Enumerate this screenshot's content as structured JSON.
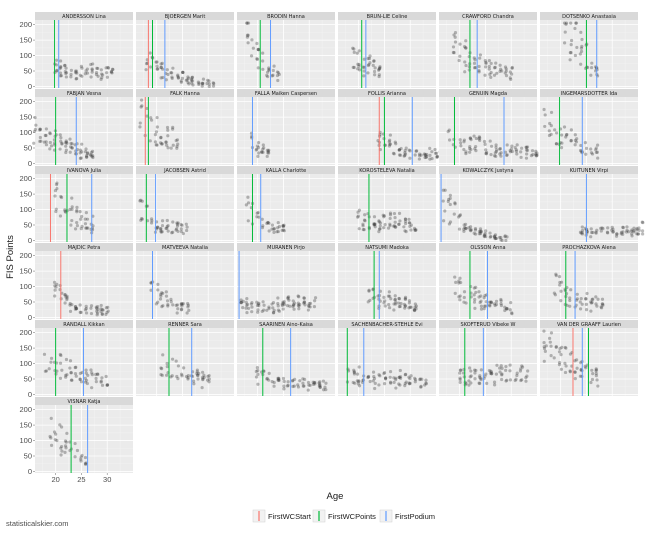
{
  "credit": "statisticalskier.com",
  "chart_data": {
    "type": "scatter",
    "xlabel": "Age",
    "ylabel": "FIS Points",
    "xlim": [
      16,
      35
    ],
    "ylim": [
      -5,
      215
    ],
    "x_ticks": [
      20,
      25,
      30
    ],
    "y_ticks": [
      0,
      50,
      100,
      150,
      200
    ],
    "grid": true,
    "facet_columns": 6,
    "legend_position": "bottom",
    "line_series": [
      {
        "key": "start",
        "name": "FirstWCStart",
        "color": "#f8766d"
      },
      {
        "key": "points",
        "name": "FirstWCPoints",
        "color": "#00ba38"
      },
      {
        "key": "podium",
        "name": "FirstPodium",
        "color": "#619cff"
      }
    ],
    "point_color": "#3a3a3a",
    "panels": [
      {
        "name": "ANDERSSON Lina",
        "start": null,
        "points": 19.8,
        "podium": 20.6,
        "age_range": [
          20,
          31
        ],
        "y_profile": [
          60,
          40,
          50,
          45
        ]
      },
      {
        "name": "BJOERGEN Marit",
        "start": 18.4,
        "points": 19.2,
        "podium": 21.6,
        "age_range": [
          18,
          31
        ],
        "y_profile": [
          80,
          40,
          20,
          10
        ]
      },
      {
        "name": "BRODIN Hanna",
        "start": null,
        "points": 20.5,
        "podium": 22.5,
        "age_range": [
          18,
          24
        ],
        "y_profile": [
          170,
          100,
          60,
          40
        ]
      },
      {
        "name": "BRUN-LIE Celine",
        "start": null,
        "points": 20.6,
        "podium": 21.4,
        "age_range": [
          19,
          24
        ],
        "y_profile": [
          90,
          70,
          60,
          50
        ]
      },
      {
        "name": "CRAWFORD Chandra",
        "start": null,
        "points": 22.0,
        "podium": 23.4,
        "age_range": [
          19,
          30
        ],
        "y_profile": [
          130,
          80,
          60,
          40
        ]
      },
      {
        "name": "DOTSENKO Anastasia",
        "start": null,
        "points": 25.0,
        "podium": 27.0,
        "age_range": [
          21,
          27
        ],
        "y_profile": [
          180,
          150,
          90,
          50
        ]
      },
      {
        "name": "FABJAN Vesna",
        "start": null,
        "points": 20.0,
        "podium": 24.0,
        "age_range": [
          16,
          27
        ],
        "y_profile": [
          110,
          80,
          50,
          30
        ]
      },
      {
        "name": "FALK Hanna",
        "start": 17.8,
        "points": 18.4,
        "podium": null,
        "age_range": [
          17,
          24
        ],
        "y_profile": [
          160,
          110,
          80,
          70
        ]
      },
      {
        "name": "FALLA Maiken Caspersen",
        "start": null,
        "points": null,
        "podium": 19.0,
        "age_range": [
          19,
          22
        ],
        "y_profile": [
          70,
          50,
          40,
          30
        ]
      },
      {
        "name": "FOLLIS Arianna",
        "start": 24.0,
        "points": 25.0,
        "podium": 30.4,
        "age_range": [
          24,
          36
        ],
        "y_profile": [
          80,
          40,
          30,
          30
        ]
      },
      {
        "name": "GENUIN Magda",
        "start": null,
        "points": 19.0,
        "podium": 28.6,
        "age_range": [
          18,
          35
        ],
        "y_profile": [
          70,
          60,
          40,
          30
        ]
      },
      {
        "name": "INGEMARSDOTTER Ida",
        "start": null,
        "points": 19.8,
        "podium": 24.2,
        "age_range": [
          17,
          27
        ],
        "y_profile": [
          130,
          90,
          60,
          40
        ]
      },
      {
        "name": "IVANOVA Julia",
        "start": 19.0,
        "points": 22.2,
        "podium": 27.0,
        "age_range": [
          20,
          27
        ],
        "y_profile": [
          140,
          100,
          70,
          50
        ]
      },
      {
        "name": "JACOBSEN Astrid",
        "start": null,
        "points": 18.0,
        "podium": 19.8,
        "age_range": [
          17,
          26
        ],
        "y_profile": [
          100,
          50,
          40,
          30
        ]
      },
      {
        "name": "KALLA Charlotte",
        "start": null,
        "points": 19.0,
        "podium": 20.6,
        "age_range": [
          18,
          25
        ],
        "y_profile": [
          100,
          60,
          40,
          30
        ]
      },
      {
        "name": "KOROSTELEVA Natalia",
        "start": null,
        "points": 22.0,
        "podium": null,
        "age_range": [
          20,
          31
        ],
        "y_profile": [
          70,
          50,
          60,
          40
        ]
      },
      {
        "name": "KOWALCZYK Justyna",
        "start": null,
        "points": null,
        "podium": 16.4,
        "age_range": [
          17,
          29
        ],
        "y_profile": [
          120,
          40,
          20,
          5
        ]
      },
      {
        "name": "KUITUNEN Virpi",
        "start": null,
        "points": null,
        "podium": 25.0,
        "age_range": [
          24,
          36
        ],
        "y_profile": [
          30,
          30,
          25,
          40
        ]
      },
      {
        "name": "MAJDIC Petra",
        "start": 21.0,
        "points": null,
        "podium": null,
        "age_range": [
          20,
          30
        ],
        "y_profile": [
          90,
          30,
          25,
          20
        ]
      },
      {
        "name": "MATVEEVA Natalia",
        "start": null,
        "points": null,
        "podium": 19.2,
        "age_range": [
          19,
          26
        ],
        "y_profile": [
          90,
          60,
          40,
          30
        ]
      },
      {
        "name": "MURANEN Pirjo",
        "start": null,
        "points": null,
        "podium": 16.4,
        "age_range": [
          17,
          31
        ],
        "y_profile": [
          40,
          30,
          50,
          40
        ]
      },
      {
        "name": "NATSUMI Madoka",
        "start": null,
        "points": 23.0,
        "podium": 24.0,
        "age_range": [
          22,
          31
        ],
        "y_profile": [
          70,
          60,
          50,
          40
        ]
      },
      {
        "name": "OLSSON Anna",
        "start": null,
        "points": 22.0,
        "podium": 25.4,
        "age_range": [
          19,
          30
        ],
        "y_profile": [
          120,
          70,
          40,
          30
        ]
      },
      {
        "name": "PROCHAZKOVA Alena",
        "start": null,
        "points": 21.0,
        "podium": 22.8,
        "age_range": [
          19,
          28
        ],
        "y_profile": [
          100,
          70,
          50,
          40
        ]
      },
      {
        "name": "RANDALL Kikkan",
        "start": null,
        "points": 20.0,
        "podium": 25.4,
        "age_range": [
          18,
          30
        ],
        "y_profile": [
          100,
          80,
          60,
          40
        ]
      },
      {
        "name": "RENNER Sara",
        "start": null,
        "points": 22.4,
        "podium": 26.8,
        "age_range": [
          21,
          30
        ],
        "y_profile": [
          100,
          70,
          60,
          50
        ]
      },
      {
        "name": "SAARINEN Aino-Kaisa",
        "start": null,
        "points": 21.0,
        "podium": 26.4,
        "age_range": [
          20,
          33
        ],
        "y_profile": [
          60,
          40,
          30,
          30
        ]
      },
      {
        "name": "SACHENBACHER-STEHLE Evi",
        "start": null,
        "points": 17.8,
        "podium": 21.0,
        "age_range": [
          18,
          33
        ],
        "y_profile": [
          60,
          50,
          50,
          40
        ]
      },
      {
        "name": "SKOFTERUD Vibeke W",
        "start": null,
        "points": 21.0,
        "podium": 24.6,
        "age_range": [
          20,
          33
        ],
        "y_profile": [
          60,
          60,
          70,
          60
        ]
      },
      {
        "name": "VAN DER GRAAFF Laurien",
        "start": 22.4,
        "points": 25.4,
        "podium": 24.2,
        "age_range": [
          17,
          27
        ],
        "y_profile": [
          150,
          120,
          80,
          60
        ]
      },
      {
        "name": "VISNAR Katja",
        "start": null,
        "points": 23.0,
        "podium": 26.2,
        "age_range": [
          19,
          26
        ],
        "y_profile": [
          140,
          100,
          60,
          30
        ]
      }
    ]
  }
}
